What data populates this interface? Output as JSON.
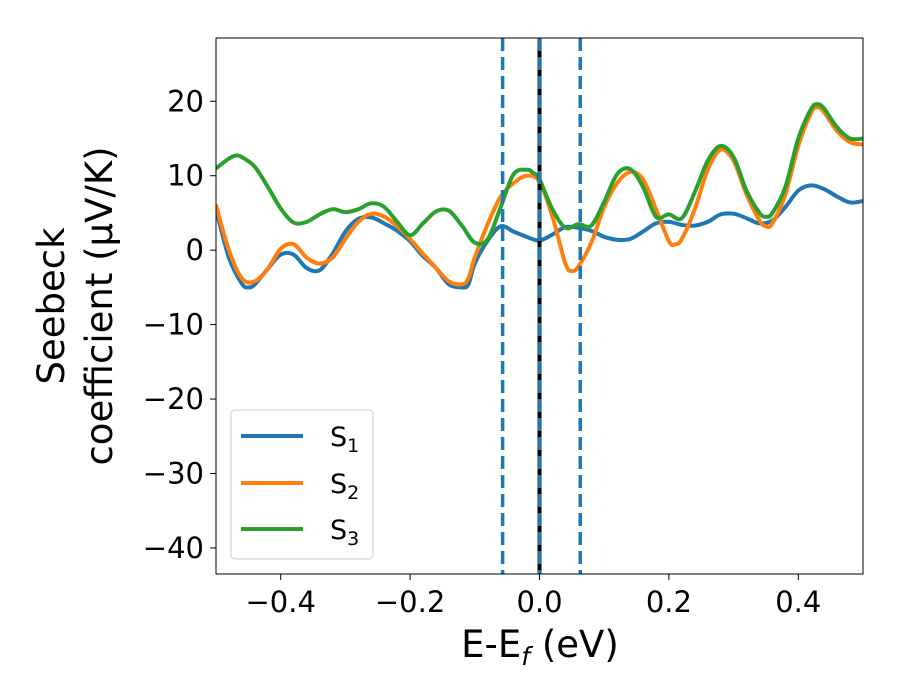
{
  "chart_data": {
    "type": "line",
    "xlabel": "E-E_f (eV)",
    "xlabel_parts": {
      "base": "E-E",
      "sub": "f",
      "unit": " (eV)"
    },
    "ylabel_line1": "Seebeck",
    "ylabel_line2": "coefficient  (μV/K)",
    "xlim": [
      -0.5,
      0.5
    ],
    "ylim": [
      -43.5,
      28.5
    ],
    "xticks": [
      -0.4,
      -0.2,
      0.0,
      0.2,
      0.4
    ],
    "xtick_labels": [
      "−0.4",
      "−0.2",
      "0.0",
      "0.2",
      "0.4"
    ],
    "yticks": [
      -40,
      -30,
      -20,
      -10,
      0,
      10,
      20
    ],
    "ytick_labels": [
      "−40",
      "−30",
      "−20",
      "−10",
      "0",
      "10",
      "20"
    ],
    "grid": false,
    "legend_position": "lower-left",
    "vlines": [
      {
        "x": -0.057,
        "style": "dashed",
        "color": "#1f77b4"
      },
      {
        "x": 0.0,
        "style": "solid",
        "color": "#000000"
      },
      {
        "x": 0.0,
        "style": "dashed",
        "color": "#1f77b4"
      },
      {
        "x": 0.063,
        "style": "dashed",
        "color": "#1f77b4"
      }
    ],
    "series": [
      {
        "name": "S_1",
        "label_base": "S",
        "label_sub": "1",
        "color": "#1f77b4",
        "x": [
          -0.5,
          -0.48,
          -0.46,
          -0.45,
          -0.44,
          -0.42,
          -0.4,
          -0.38,
          -0.36,
          -0.34,
          -0.32,
          -0.3,
          -0.28,
          -0.26,
          -0.24,
          -0.22,
          -0.2,
          -0.18,
          -0.16,
          -0.14,
          -0.12,
          -0.11,
          -0.1,
          -0.08,
          -0.06,
          -0.04,
          -0.02,
          0.0,
          0.02,
          0.04,
          0.06,
          0.08,
          0.1,
          0.12,
          0.14,
          0.16,
          0.18,
          0.2,
          0.22,
          0.24,
          0.26,
          0.28,
          0.3,
          0.32,
          0.34,
          0.36,
          0.38,
          0.4,
          0.42,
          0.44,
          0.46,
          0.48,
          0.5
        ],
        "y": [
          5.5,
          -1.0,
          -4.5,
          -5.0,
          -4.6,
          -2.5,
          -0.6,
          -0.6,
          -2.4,
          -2.7,
          -0.5,
          2.5,
          4.2,
          4.4,
          3.6,
          2.6,
          1.2,
          -0.8,
          -2.4,
          -4.6,
          -5.0,
          -4.6,
          -1.8,
          1.3,
          3.2,
          2.5,
          1.8,
          1.3,
          2.1,
          3.1,
          3.0,
          2.6,
          1.8,
          1.4,
          1.5,
          2.5,
          3.6,
          3.8,
          3.4,
          3.3,
          3.8,
          4.8,
          4.9,
          4.3,
          3.6,
          4.0,
          5.8,
          8.0,
          8.7,
          8.2,
          7.2,
          6.4,
          6.6
        ]
      },
      {
        "name": "S_2",
        "label_base": "S",
        "label_sub": "2",
        "color": "#ff7f0e",
        "x": [
          -0.5,
          -0.48,
          -0.46,
          -0.44,
          -0.42,
          -0.4,
          -0.38,
          -0.36,
          -0.34,
          -0.32,
          -0.3,
          -0.28,
          -0.26,
          -0.24,
          -0.22,
          -0.2,
          -0.18,
          -0.16,
          -0.14,
          -0.12,
          -0.11,
          -0.1,
          -0.08,
          -0.06,
          -0.04,
          -0.02,
          0.0,
          0.02,
          0.04,
          0.05,
          0.06,
          0.08,
          0.1,
          0.12,
          0.14,
          0.16,
          0.18,
          0.2,
          0.21,
          0.22,
          0.24,
          0.26,
          0.28,
          0.3,
          0.32,
          0.34,
          0.35,
          0.36,
          0.38,
          0.4,
          0.42,
          0.43,
          0.44,
          0.46,
          0.48,
          0.5
        ],
        "y": [
          6.0,
          0.0,
          -3.8,
          -4.2,
          -2.5,
          0.2,
          0.8,
          -1.0,
          -1.8,
          -1.0,
          1.5,
          3.8,
          4.9,
          4.5,
          3.2,
          1.5,
          -0.5,
          -2.4,
          -4.2,
          -4.6,
          -3.8,
          -1.0,
          3.5,
          7.2,
          9.0,
          10.0,
          9.2,
          4.5,
          -1.8,
          -2.8,
          -2.2,
          1.0,
          5.8,
          9.0,
          10.5,
          9.5,
          5.5,
          1.2,
          0.8,
          1.5,
          5.5,
          10.8,
          13.5,
          12.0,
          7.5,
          4.0,
          3.2,
          3.6,
          7.5,
          14.0,
          18.5,
          19.2,
          18.5,
          16.0,
          14.5,
          14.2
        ]
      },
      {
        "name": "S_3",
        "label_base": "S",
        "label_sub": "3",
        "color": "#2ca02c",
        "x": [
          -0.5,
          -0.48,
          -0.47,
          -0.46,
          -0.44,
          -0.42,
          -0.4,
          -0.38,
          -0.36,
          -0.34,
          -0.32,
          -0.3,
          -0.28,
          -0.26,
          -0.24,
          -0.22,
          -0.2,
          -0.18,
          -0.16,
          -0.14,
          -0.12,
          -0.1,
          -0.08,
          -0.06,
          -0.04,
          -0.02,
          -0.01,
          0.0,
          0.02,
          0.04,
          0.06,
          0.08,
          0.1,
          0.12,
          0.14,
          0.16,
          0.18,
          0.2,
          0.22,
          0.24,
          0.26,
          0.28,
          0.3,
          0.32,
          0.34,
          0.35,
          0.36,
          0.38,
          0.4,
          0.42,
          0.43,
          0.44,
          0.46,
          0.48,
          0.5
        ],
        "y": [
          11.0,
          12.3,
          12.7,
          12.5,
          11.2,
          8.5,
          5.6,
          3.7,
          3.8,
          4.8,
          5.5,
          5.1,
          5.5,
          6.3,
          5.8,
          3.8,
          2.0,
          3.6,
          5.2,
          5.3,
          3.3,
          1.0,
          1.5,
          5.8,
          10.2,
          10.8,
          10.4,
          9.5,
          5.5,
          3.0,
          3.5,
          3.3,
          6.5,
          10.2,
          10.9,
          8.5,
          4.5,
          4.8,
          4.3,
          7.8,
          12.0,
          14.0,
          12.5,
          8.0,
          5.0,
          4.5,
          5.0,
          8.5,
          15.0,
          19.0,
          19.6,
          19.0,
          16.5,
          15.0,
          15.0
        ]
      }
    ]
  }
}
